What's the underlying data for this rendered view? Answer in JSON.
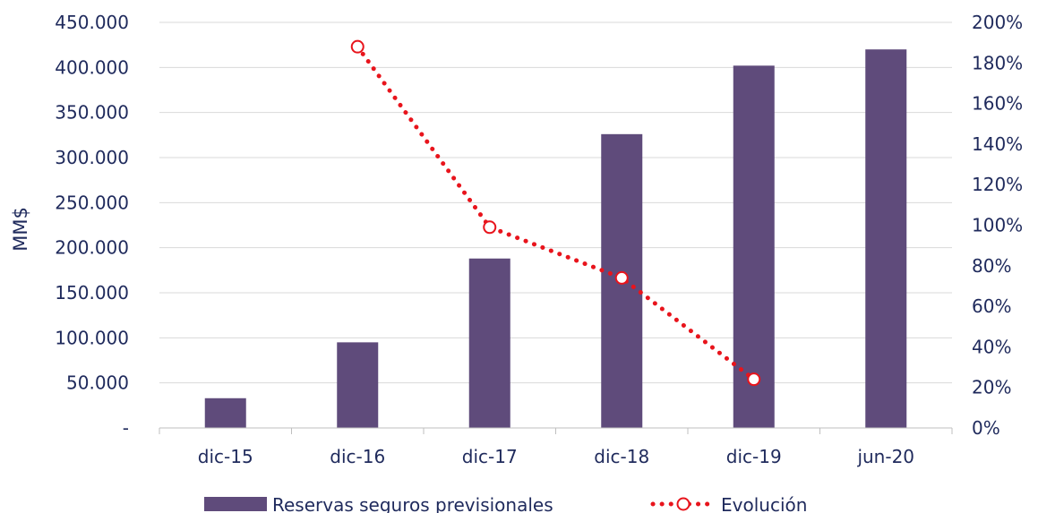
{
  "chart_data": {
    "type": "bar+line",
    "categories": [
      "dic-15",
      "dic-16",
      "dic-17",
      "dic-18",
      "dic-19",
      "jun-20"
    ],
    "ylabel": "MM$",
    "y_ticks": [
      "-",
      "50.000",
      "100.000",
      "150.000",
      "200.000",
      "250.000",
      "300.000",
      "350.000",
      "400.000",
      "450.000"
    ],
    "y_lim": [
      0,
      450000
    ],
    "y2_ticks": [
      "0%",
      "20%",
      "40%",
      "60%",
      "80%",
      "100%",
      "120%",
      "140%",
      "160%",
      "180%",
      "200%"
    ],
    "y2_lim": [
      0,
      200
    ],
    "series": [
      {
        "name": "Reservas seguros previsionales",
        "type": "bar",
        "axis": "left",
        "values": [
          33000,
          95000,
          188000,
          326000,
          402000,
          420000
        ]
      },
      {
        "name": "Evolución",
        "type": "line",
        "axis": "right",
        "values": [
          null,
          188,
          99,
          74,
          24,
          null
        ]
      }
    ],
    "colors": {
      "bar": "#5f4b7b",
      "line": "#e8141c",
      "grid": "#d9d9d9",
      "text": "#1f2a5c"
    },
    "grid": true,
    "legend_position": "bottom"
  }
}
